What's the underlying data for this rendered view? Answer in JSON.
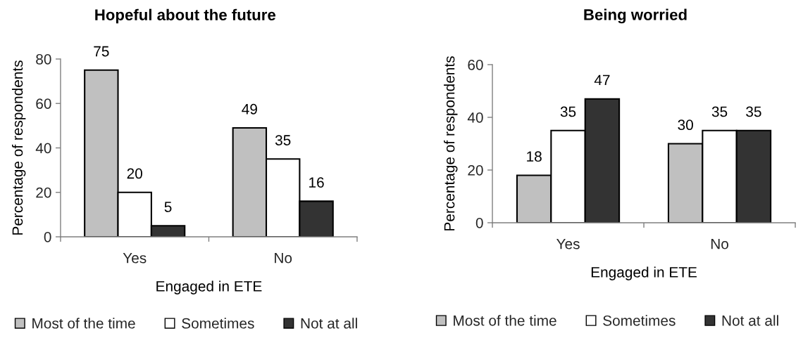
{
  "chart_data": [
    {
      "type": "bar",
      "title": "Hopeful about the future",
      "xlabel": "Engaged in ETE",
      "ylabel": "Percentage of respondents",
      "categories": [
        "Yes",
        "No"
      ],
      "series": [
        {
          "name": "Most of the time",
          "color": "#c0c0c0",
          "values": [
            75,
            49
          ]
        },
        {
          "name": "Sometimes",
          "color": "#ffffff",
          "values": [
            20,
            35
          ]
        },
        {
          "name": "Not at all",
          "color": "#333333",
          "values": [
            5,
            16
          ]
        }
      ],
      "ylim": [
        0,
        80
      ],
      "yticks": [
        0,
        20,
        40,
        60,
        80
      ],
      "data_labels": true,
      "legend": "bottom"
    },
    {
      "type": "bar",
      "title": "Being worried",
      "xlabel": "Engaged in ETE",
      "ylabel": "Percentage of respondents",
      "categories": [
        "Yes",
        "No"
      ],
      "series": [
        {
          "name": "Most of the time",
          "color": "#c0c0c0",
          "values": [
            18,
            30
          ]
        },
        {
          "name": "Sometimes",
          "color": "#ffffff",
          "values": [
            35,
            35
          ]
        },
        {
          "name": "Not at all",
          "color": "#333333",
          "values": [
            47,
            35
          ]
        }
      ],
      "ylim": [
        0,
        60
      ],
      "yticks": [
        0,
        20,
        40,
        60
      ],
      "data_labels": true,
      "legend": "bottom"
    }
  ]
}
